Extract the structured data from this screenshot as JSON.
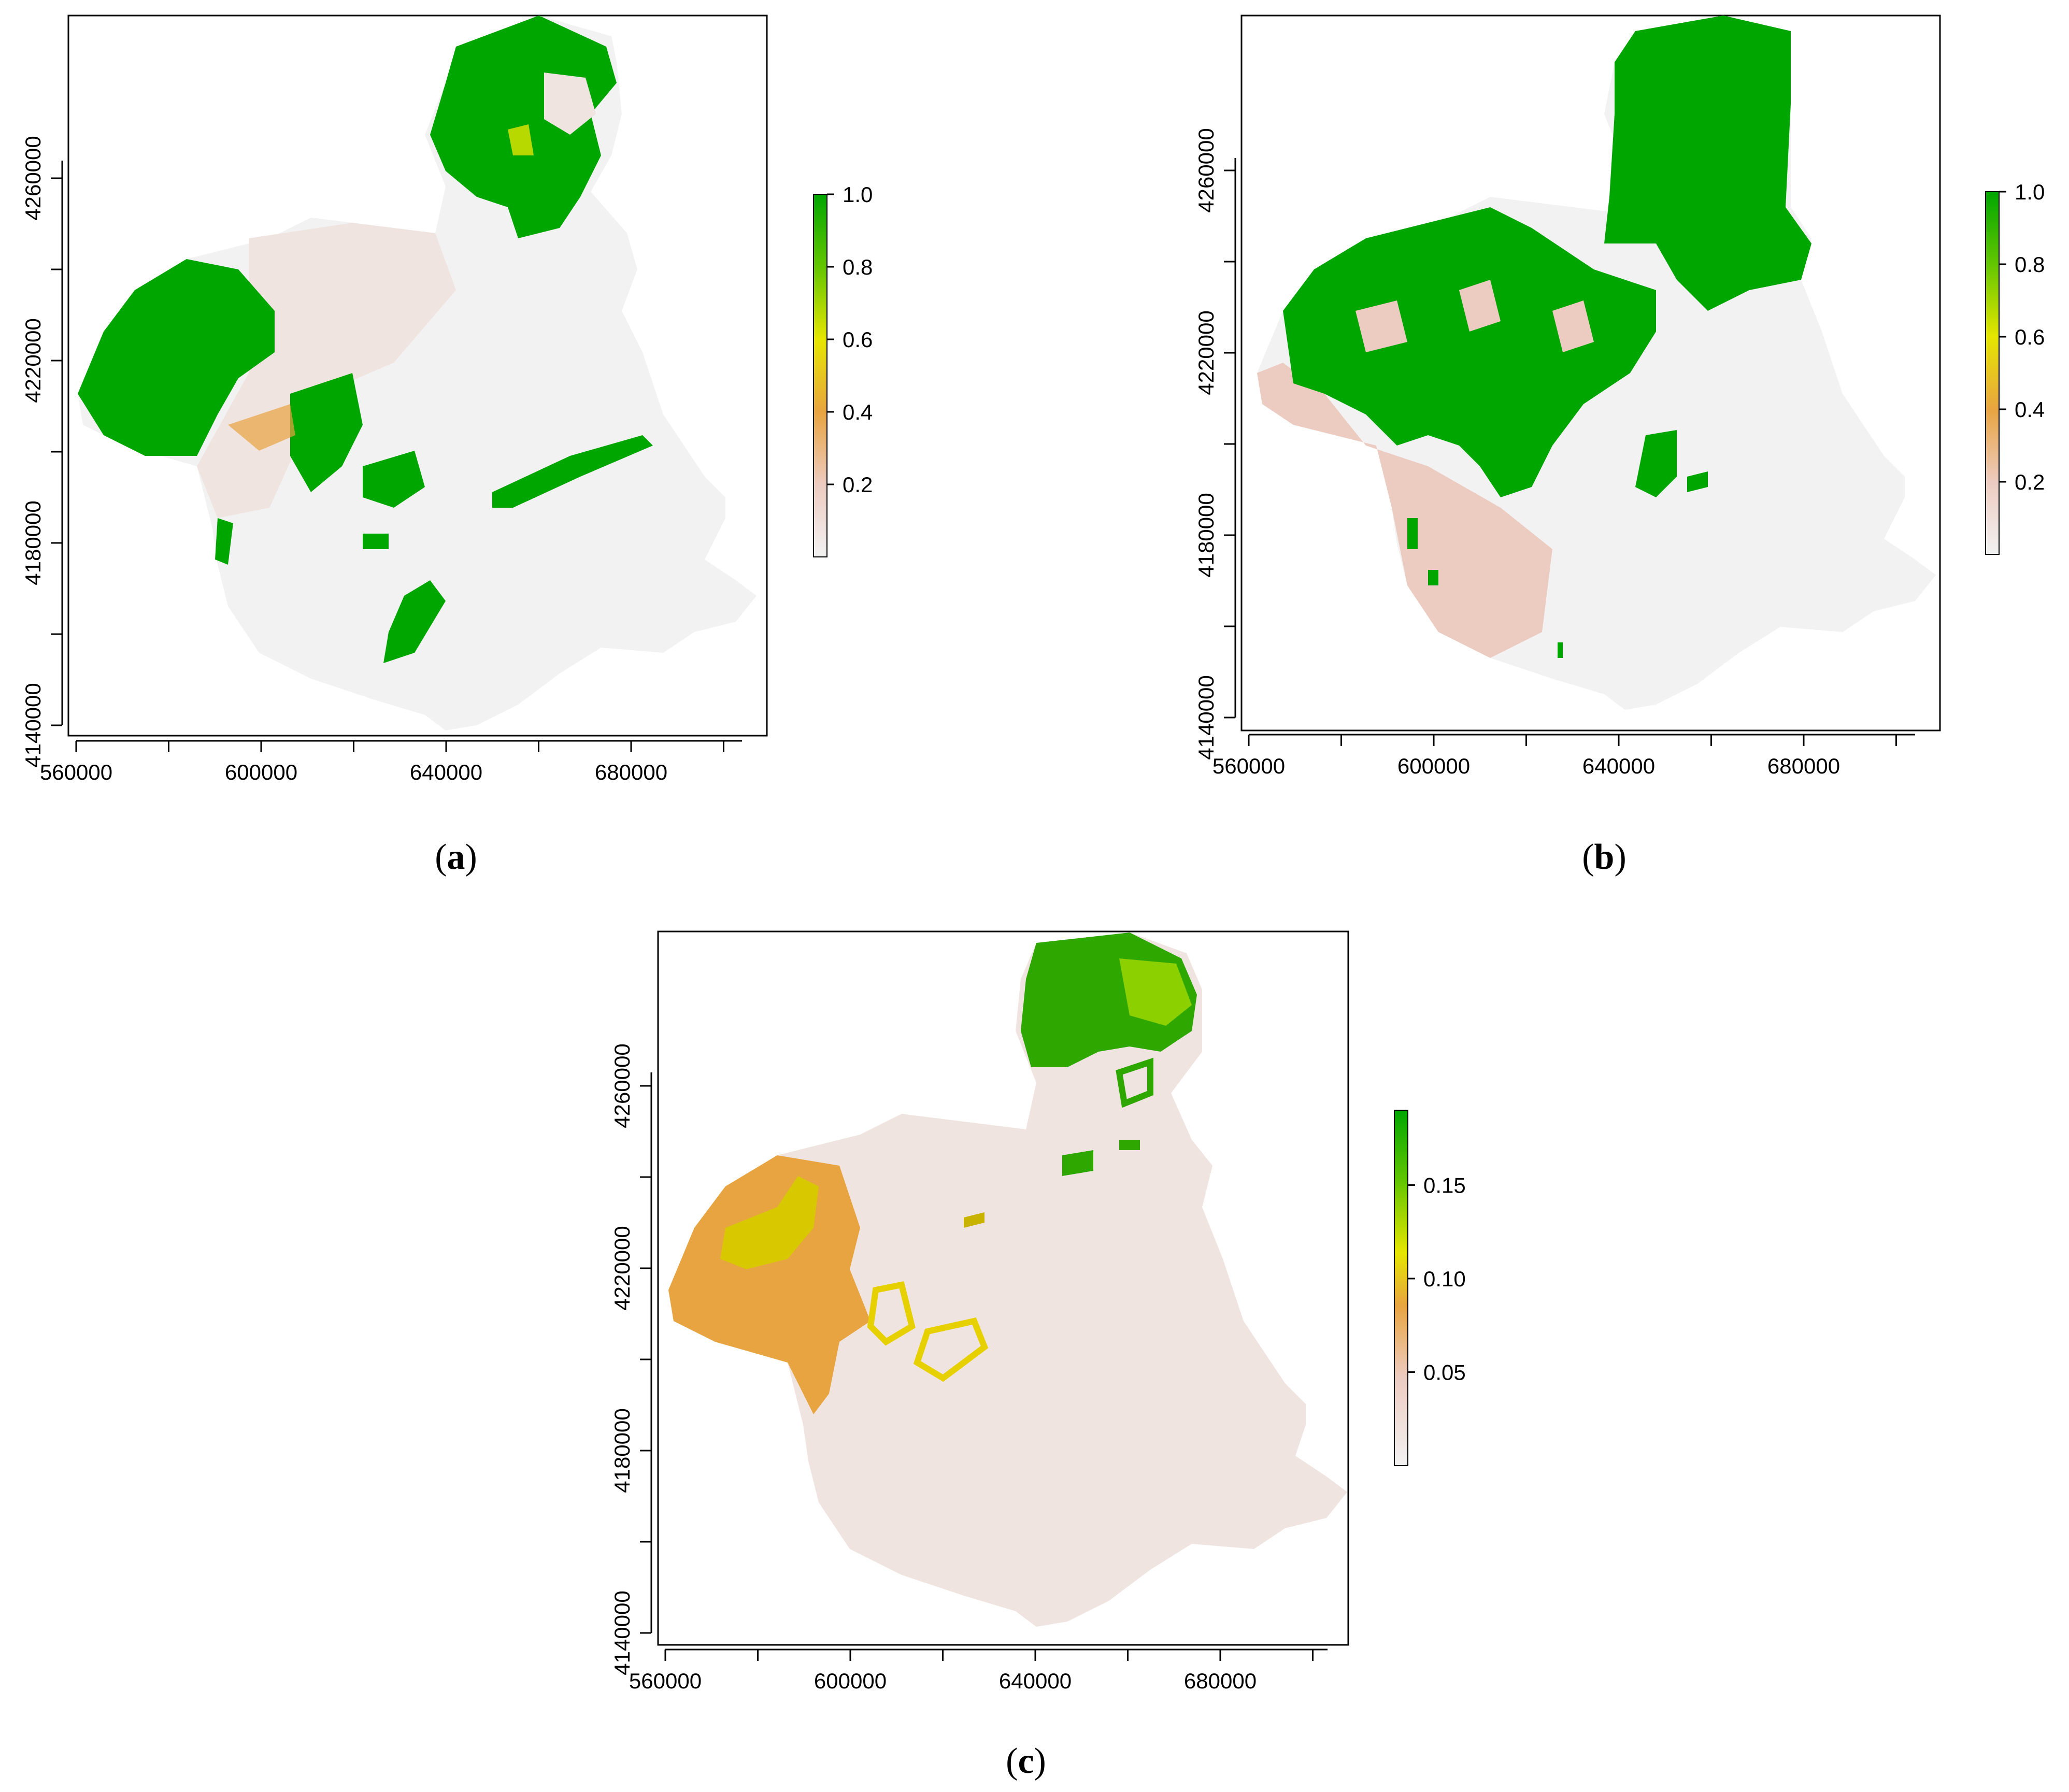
{
  "panels": [
    {
      "id": "a",
      "caption_letter": "a",
      "x_ticks": [
        "560000",
        "600000",
        "640000",
        "680000"
      ],
      "y_ticks": [
        "4140000",
        "4180000",
        "4220000",
        "4260000"
      ],
      "legend_ticks": [
        "1.0",
        "0.8",
        "0.6",
        "0.4",
        "0.2"
      ],
      "legend_range": [
        0,
        1.0
      ],
      "dominant": "binary suitability: large green patches in north and west, pale elsewhere"
    },
    {
      "id": "b",
      "caption_letter": "b",
      "x_ticks": [
        "560000",
        "600000",
        "640000",
        "680000"
      ],
      "y_ticks": [
        "4140000",
        "4180000",
        "4220000",
        "4260000"
      ],
      "legend_ticks": [
        "1.0",
        "0.8",
        "0.6",
        "0.4",
        "0.2"
      ],
      "legend_range": [
        0,
        1.0
      ],
      "dominant": "large continuous green block in the north and northwest"
    },
    {
      "id": "c",
      "caption_letter": "c",
      "x_ticks": [
        "560000",
        "600000",
        "640000",
        "680000"
      ],
      "y_ticks": [
        "4140000",
        "4180000",
        "4220000",
        "4260000"
      ],
      "legend_ticks": [
        "0.15",
        "0.10",
        "0.05"
      ],
      "legend_range": [
        0,
        0.19
      ],
      "dominant": "mostly pale pink, green only in northern tip, orange-yellow in west"
    }
  ],
  "colors": {
    "green": "#00a600",
    "light_green": "#63c600",
    "yellow": "#e6e600",
    "orange": "#e8a440",
    "tan": "#e9bd8f",
    "pink": "#eccbc0",
    "pale": "#f0e4e1",
    "blank": "#f2f2f2"
  }
}
